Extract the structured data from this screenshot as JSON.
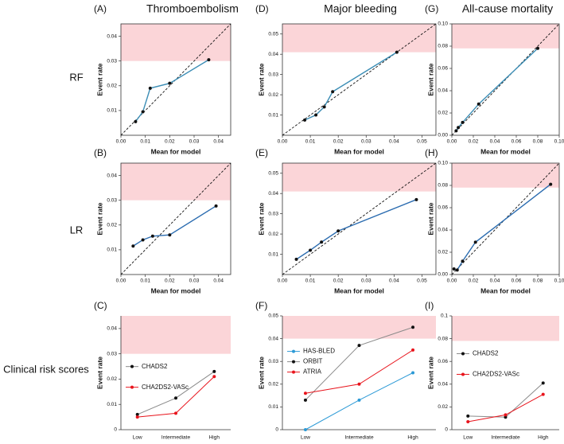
{
  "column_titles": [
    "Thromboembolism",
    "Major bleeding",
    "All-cause mortality"
  ],
  "row_labels": [
    "RF",
    "LR",
    "Clinical risk scores"
  ],
  "chart_data": [
    {
      "type": "calibration",
      "panel": "(A)",
      "xlabel": "Mean for model",
      "ylabel": "Event rate",
      "color": "#3b8db5",
      "x": [
        0.006,
        0.009,
        0.012,
        0.02,
        0.036
      ],
      "values": [
        0.0055,
        0.0095,
        0.019,
        0.021,
        0.0305
      ],
      "xlim": [
        0,
        0.045
      ],
      "ylim": [
        0,
        0.045
      ],
      "shaded_band": [
        0.03,
        0.045
      ],
      "xticks": [
        {
          "value": 0,
          "label": "0.00"
        },
        0.01,
        0.02,
        0.03,
        0.04
      ],
      "yticks": [
        0.01,
        0.02,
        0.03,
        0.04
      ]
    },
    {
      "type": "calibration",
      "panel": "(D)",
      "xlabel": "Mean for model",
      "ylabel": "Event rate",
      "color": "#3b8db5",
      "x": [
        0.008,
        0.012,
        0.015,
        0.018,
        0.041
      ],
      "values": [
        0.0075,
        0.01,
        0.014,
        0.0215,
        0.041
      ],
      "xlim": [
        0,
        0.055
      ],
      "ylim": [
        0,
        0.055
      ],
      "shaded_band": [
        0.041,
        0.055
      ],
      "xticks": [
        {
          "value": 0,
          "label": "0.00"
        },
        0.01,
        0.02,
        0.03,
        0.04,
        0.05
      ],
      "yticks": [
        0.01,
        0.02,
        0.03,
        0.04,
        0.05
      ]
    },
    {
      "type": "calibration",
      "panel": "(G)",
      "xlabel": "Mean for model",
      "ylabel": "Event rate",
      "color": "#3b8db5",
      "x": [
        0.004,
        0.006,
        0.01,
        0.025,
        0.08
      ],
      "values": [
        0.004,
        0.007,
        0.0115,
        0.028,
        0.078
      ],
      "xlim": [
        0,
        0.1
      ],
      "ylim": [
        0,
        0.1
      ],
      "shaded_band": [
        0.078,
        0.1
      ],
      "xticks": [
        {
          "value": 0,
          "label": "0.00"
        },
        0.02,
        0.04,
        0.06,
        0.08,
        {
          "value": 0.1,
          "label": "0.10"
        }
      ],
      "yticks": [
        {
          "value": 0,
          "label": "0.00"
        },
        0.02,
        0.04,
        0.06,
        0.08,
        {
          "value": 0.1,
          "label": "0.10"
        }
      ]
    },
    {
      "type": "calibration",
      "panel": "(B)",
      "xlabel": "Mean for model",
      "ylabel": "Event rate",
      "color": "#2b6cb0",
      "x": [
        0.005,
        0.009,
        0.013,
        0.02,
        0.039
      ],
      "values": [
        0.0115,
        0.014,
        0.0155,
        0.016,
        0.0277
      ],
      "xlim": [
        0,
        0.045
      ],
      "ylim": [
        0,
        0.045
      ],
      "shaded_band": [
        0.03,
        0.045
      ],
      "xticks": [
        {
          "value": 0,
          "label": "0.00"
        },
        0.01,
        0.02,
        0.03,
        0.04
      ],
      "yticks": [
        0.01,
        0.02,
        0.03,
        0.04
      ]
    },
    {
      "type": "calibration",
      "panel": "(E)",
      "xlabel": "Mean for model",
      "ylabel": "Event rate",
      "color": "#2b6cb0",
      "x": [
        0.005,
        0.01,
        0.014,
        0.02,
        0.048
      ],
      "values": [
        0.0075,
        0.012,
        0.016,
        0.0215,
        0.037
      ],
      "xlim": [
        0,
        0.055
      ],
      "ylim": [
        0,
        0.055
      ],
      "shaded_band": [
        0.041,
        0.055
      ],
      "xticks": [
        {
          "value": 0,
          "label": "0.00"
        },
        0.01,
        0.02,
        0.03,
        0.04,
        0.05
      ],
      "yticks": [
        0.01,
        0.02,
        0.03,
        0.04,
        0.05
      ]
    },
    {
      "type": "calibration",
      "panel": "(H)",
      "xlabel": "Mean for model",
      "ylabel": "Event rate",
      "color": "#2b6cb0",
      "x": [
        0.002,
        0.005,
        0.01,
        0.022,
        0.092
      ],
      "values": [
        0.005,
        0.004,
        0.012,
        0.029,
        0.081
      ],
      "xlim": [
        0,
        0.1
      ],
      "ylim": [
        0,
        0.1
      ],
      "shaded_band": [
        0.078,
        0.1
      ],
      "xticks": [
        {
          "value": 0,
          "label": "0.00"
        },
        0.02,
        0.04,
        0.06,
        0.08,
        {
          "value": 0.1,
          "label": "0.10"
        }
      ],
      "yticks": [
        {
          "value": 0,
          "label": "0.00"
        },
        0.02,
        0.04,
        0.06,
        0.08,
        {
          "value": 0.1,
          "label": "0.10"
        }
      ]
    },
    {
      "type": "line",
      "panel": "(C)",
      "ylabel": "Event rate",
      "categories": [
        "Low",
        "Intermediate",
        "High"
      ],
      "series": [
        {
          "name": "CHADS2",
          "color": "#111111",
          "values": [
            0.006,
            0.0125,
            0.023
          ]
        },
        {
          "name": "CHA2DS2-VASc",
          "color": "#e8141c",
          "values": [
            0.005,
            0.0065,
            0.021
          ]
        }
      ],
      "ylim": [
        0,
        0.045
      ],
      "shaded_band": [
        0.03,
        0.045
      ],
      "yticks": [
        0,
        0.01,
        0.02,
        0.03,
        0.04
      ]
    },
    {
      "type": "line",
      "panel": "(F)",
      "ylabel": "Event rate",
      "categories": [
        "Low",
        "Intermediate",
        "High"
      ],
      "series": [
        {
          "name": "HAS-BLED",
          "color": "#2c9ad6",
          "values": [
            0,
            0.013,
            0.025
          ]
        },
        {
          "name": "ORBIT",
          "color": "#111111",
          "values": [
            0.013,
            0.037,
            0.045
          ]
        },
        {
          "name": "ATRIA",
          "color": "#e8141c",
          "values": [
            0.016,
            0.02,
            0.035
          ]
        }
      ],
      "ylim": [
        0,
        0.05
      ],
      "shaded_band": [
        0.04,
        0.05
      ],
      "yticks": [
        0,
        0.01,
        0.02,
        0.03,
        0.04,
        0.05
      ]
    },
    {
      "type": "line",
      "panel": "(I)",
      "ylabel": "Event rate",
      "categories": [
        "Low",
        "Intermediate",
        "High"
      ],
      "series": [
        {
          "name": "CHADS2",
          "color": "#111111",
          "values": [
            0.012,
            0.011,
            0.041
          ]
        },
        {
          "name": "CHA2DS2-VASc",
          "color": "#e8141c",
          "values": [
            0.007,
            0.013,
            0.031
          ]
        }
      ],
      "ylim": [
        0,
        0.1
      ],
      "shaded_band": [
        0.078,
        0.1
      ],
      "yticks": [
        0,
        0.02,
        0.04,
        0.06,
        0.08,
        0.1
      ]
    }
  ]
}
